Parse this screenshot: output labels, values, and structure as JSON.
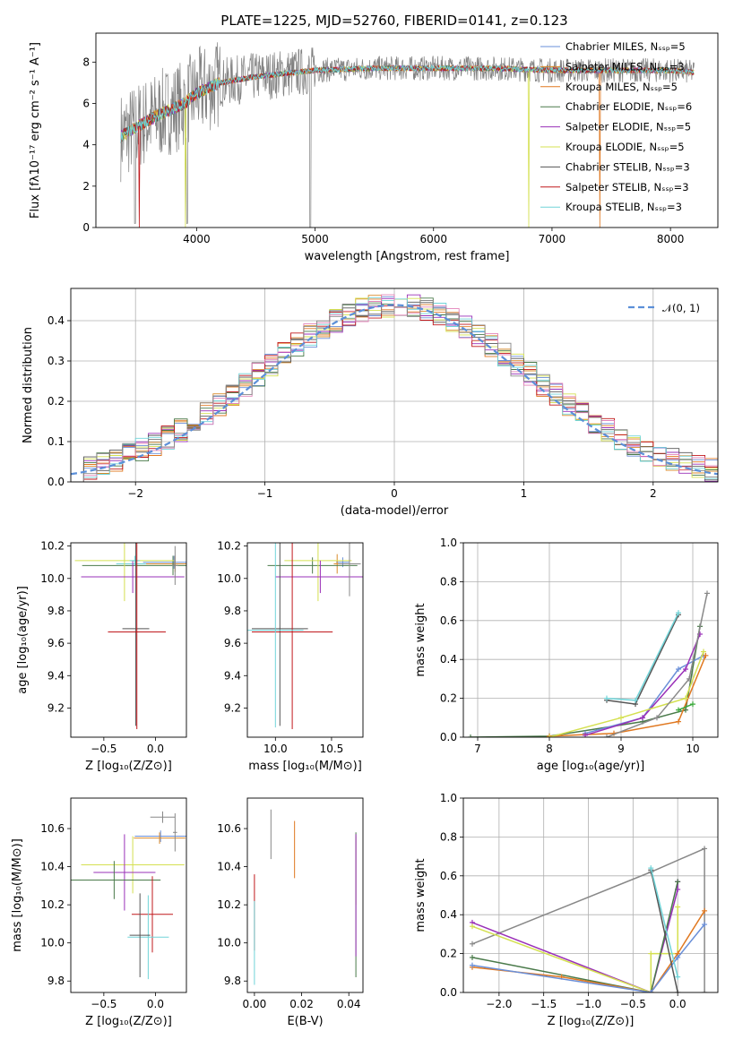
{
  "figure_title": "PLATE=1225, MJD=52760, FIBERID=0141, z=0.123",
  "series_colors": [
    "#6a8fd8",
    "#d98a2a",
    "#e07820",
    "#4a7a4a",
    "#9a30b8",
    "#d4e050",
    "#555555",
    "#c0181c",
    "#70d4d8"
  ],
  "extra_colors": {
    "pink": "#e383b9",
    "green": "#3aa83a"
  },
  "chart_data": [
    {
      "id": "spectrum",
      "type": "line",
      "title": "PLATE=1225, MJD=52760, FIBERID=0141, z=0.123",
      "xlabel": "wavelength [Angstrom, rest frame]",
      "ylabel": "Flux [fλ10⁻¹⁷ erg cm⁻² s⁻¹ A⁻¹]",
      "xlim": [
        3150,
        8400
      ],
      "ylim": [
        0,
        9.4
      ],
      "xticks": [
        "4000",
        "5000",
        "6000",
        "7000",
        "8000"
      ],
      "yticks": [
        "0",
        "2",
        "4",
        "6",
        "8"
      ],
      "legend": "upper right",
      "series": [
        {
          "name": "Chabrier MILES, Nₛₛₚ=5"
        },
        {
          "name": "Salpeter MILES, Nₛₛₚ=3"
        },
        {
          "name": "Kroupa MILES, Nₛₛₚ=5"
        },
        {
          "name": "Chabrier ELODIE, Nₛₛₚ=6"
        },
        {
          "name": "Salpeter ELODIE, Nₛₛₚ=5"
        },
        {
          "name": "Kroupa ELODIE, Nₛₛₚ=5"
        },
        {
          "name": "Chabrier STELIB, Nₛₛₚ=3"
        },
        {
          "name": "Salpeter STELIB, Nₛₛₚ=3"
        },
        {
          "name": "Kroupa STELIB, Nₛₛₚ=3"
        }
      ],
      "continuum": [
        [
          3360,
          4.4
        ],
        [
          3500,
          4.9
        ],
        [
          3700,
          5.5
        ],
        [
          3900,
          6.0
        ],
        [
          4000,
          6.5
        ],
        [
          4200,
          7.0
        ],
        [
          4500,
          7.3
        ],
        [
          5000,
          7.6
        ],
        [
          5500,
          7.7
        ],
        [
          6000,
          7.7
        ],
        [
          6500,
          7.7
        ],
        [
          7000,
          7.6
        ],
        [
          7500,
          7.6
        ],
        [
          8000,
          7.6
        ],
        [
          8200,
          7.5
        ]
      ]
    },
    {
      "id": "residuals",
      "type": "step",
      "xlabel": "(data-model)/error",
      "ylabel": "Normed distribution",
      "xlim": [
        -2.5,
        2.5
      ],
      "ylim": [
        0,
        0.48
      ],
      "xticks": [
        "−2",
        "−1",
        "0",
        "1",
        "2"
      ],
      "yticks": [
        "0.0",
        "0.1",
        "0.2",
        "0.3",
        "0.4"
      ],
      "legend_label": "𝒩(0, 1)",
      "grid": true
    },
    {
      "id": "age-vs-z",
      "type": "scatter",
      "xlabel": "Z [log₁₀(Z/Z⊙)]",
      "ylabel": "age  [log₁₀(age/yr)]",
      "xlim": [
        -0.82,
        0.3
      ],
      "ylim": [
        9.02,
        10.22
      ],
      "xticks": [
        "−0.5",
        "0.0"
      ],
      "yticks": [
        "9.2",
        "9.4",
        "9.6",
        "9.8",
        "10.0",
        "10.2"
      ],
      "errorbars": [
        {
          "x": 0.17,
          "y": 10.09,
          "xerr": 0.55,
          "yerr": 0.03,
          "c": 8
        },
        {
          "x": 0.18,
          "y": 10.1,
          "xerr": 0.3,
          "yerr": 0.04,
          "c": 0
        },
        {
          "x": 0.19,
          "y": 10.09,
          "xerr": 0.28,
          "yerr": 0.05,
          "c": 1
        },
        {
          "x": 0.17,
          "y": 10.08,
          "xerr": 0.88,
          "yerr": 0.06,
          "c": 3
        },
        {
          "x": -0.3,
          "y": 10.11,
          "xerr": 0.48,
          "yerr": 0.25,
          "c": 5
        },
        {
          "x": -0.22,
          "y": 10.01,
          "xerr": 0.5,
          "yerr": 0.1,
          "c": 4
        },
        {
          "x": -0.2,
          "y": 10.11,
          "xerr": 0.05,
          "yerr": 0.03,
          "c": 8
        },
        {
          "x": -0.19,
          "y": 9.69,
          "xerr": 0.13,
          "yerr": 0.6,
          "c": 6
        },
        {
          "x": -0.18,
          "y": 9.67,
          "xerr": 0.28,
          "yerr": 0.6,
          "c": 7
        },
        {
          "x": 0.19,
          "y": 10.08,
          "xerr": 0.03,
          "yerr": 0.12,
          "c": 10
        }
      ]
    },
    {
      "id": "age-vs-mass",
      "type": "scatter",
      "xlabel": "mass [log₁₀(M/M⊙)]",
      "ylabel": "",
      "xlim": [
        9.75,
        10.78
      ],
      "ylim": [
        9.02,
        10.22
      ],
      "xticks": [
        "10.0",
        "10.5"
      ],
      "yticks": [
        "9.2",
        "9.4",
        "9.6",
        "9.8",
        "10.0",
        "10.2"
      ],
      "errorbars": [
        {
          "x": 10.6,
          "y": 10.1,
          "xerr": 0.06,
          "yerr": 0.03,
          "c": 0
        },
        {
          "x": 10.55,
          "y": 10.09,
          "xerr": 0.03,
          "yerr": 0.06,
          "c": 1
        },
        {
          "x": 10.33,
          "y": 10.08,
          "xerr": 0.4,
          "yerr": 0.05,
          "c": 3
        },
        {
          "x": 10.38,
          "y": 10.11,
          "xerr": 0.3,
          "yerr": 0.25,
          "c": 5
        },
        {
          "x": 10.4,
          "y": 10.01,
          "xerr": 0.4,
          "yerr": 0.1,
          "c": 4
        },
        {
          "x": 10.66,
          "y": 10.09,
          "xerr": 0.1,
          "yerr": 0.2,
          "c": 10
        },
        {
          "x": 10.04,
          "y": 9.69,
          "xerr": 0.25,
          "yerr": 0.6,
          "c": 6
        },
        {
          "x": 10.15,
          "y": 9.67,
          "xerr": 0.36,
          "yerr": 0.6,
          "c": 7
        },
        {
          "x": 10.0,
          "y": 9.68,
          "xerr": 0.25,
          "yerr": 0.6,
          "c": 8
        }
      ]
    },
    {
      "id": "mass-weight-vs-age",
      "type": "line",
      "xlabel": "age  [log₁₀(age/yr)]",
      "ylabel": "mass weight",
      "xlim": [
        6.8,
        10.35
      ],
      "ylim": [
        0,
        1.0
      ],
      "xticks": [
        "7",
        "8",
        "9",
        "10"
      ],
      "yticks": [
        "0.0",
        "0.2",
        "0.4",
        "0.6",
        "0.8",
        "1.0"
      ],
      "grid": true,
      "series": [
        {
          "c": 3,
          "x": [
            6.9,
            8.0,
            9.3,
            9.9,
            10.1
          ],
          "y": [
            0.0,
            0.005,
            0.08,
            0.14,
            0.57
          ]
        },
        {
          "c": 0,
          "x": [
            8.5,
            9.3,
            9.8,
            10.15
          ],
          "y": [
            0.02,
            0.1,
            0.35,
            0.42
          ]
        },
        {
          "c": 2,
          "x": [
            8.0,
            8.9,
            9.8,
            10.18
          ],
          "y": [
            0.005,
            0.02,
            0.08,
            0.42
          ]
        },
        {
          "c": 4,
          "x": [
            8.5,
            9.3,
            9.9,
            10.1
          ],
          "y": [
            0.01,
            0.1,
            0.35,
            0.53
          ]
        },
        {
          "c": 5,
          "x": [
            8.0,
            9.0,
            9.9,
            10.15
          ],
          "y": [
            0.0,
            0.1,
            0.2,
            0.44
          ]
        },
        {
          "c": 10,
          "x": [
            8.8,
            9.5,
            9.95,
            10.2
          ],
          "y": [
            0.0,
            0.1,
            0.3,
            0.74
          ]
        },
        {
          "c": 6,
          "x": [
            8.8,
            9.2,
            9.8
          ],
          "y": [
            0.19,
            0.17,
            0.63
          ]
        },
        {
          "c": 8,
          "x": [
            8.8,
            9.2,
            9.8
          ],
          "y": [
            0.2,
            0.19,
            0.64
          ]
        },
        {
          "c": 11,
          "x": [
            9.8,
            10.0
          ],
          "y": [
            0.14,
            0.17
          ]
        }
      ]
    },
    {
      "id": "mass-vs-z",
      "type": "scatter",
      "xlabel": "Z [log₁₀(Z/Z⊙)]",
      "ylabel": "mass [log₁₀(M/M⊙)]",
      "xlim": [
        -0.82,
        0.3
      ],
      "ylim": [
        9.74,
        10.76
      ],
      "xticks": [
        "−0.5",
        "0.0"
      ],
      "yticks": [
        "9.8",
        "10.0",
        "10.2",
        "10.4",
        "10.6"
      ],
      "errorbars": [
        {
          "x": 0.07,
          "y": 10.66,
          "xerr": 0.12,
          "yerr": 0.03,
          "c": 10
        },
        {
          "x": 0.05,
          "y": 10.56,
          "xerr": 0.25,
          "yerr": 0.03,
          "c": 0
        },
        {
          "x": 0.04,
          "y": 10.55,
          "xerr": 0.25,
          "yerr": 0.03,
          "c": 1
        },
        {
          "x": -0.22,
          "y": 10.41,
          "xerr": 0.5,
          "yerr": 0.15,
          "c": 5
        },
        {
          "x": -0.3,
          "y": 10.37,
          "xerr": 0.3,
          "yerr": 0.2,
          "c": 4
        },
        {
          "x": -0.4,
          "y": 10.33,
          "xerr": 0.45,
          "yerr": 0.1,
          "c": 3
        },
        {
          "x": -0.03,
          "y": 10.15,
          "xerr": 0.2,
          "yerr": 0.2,
          "c": 7
        },
        {
          "x": -0.07,
          "y": 10.03,
          "xerr": 0.2,
          "yerr": 0.22,
          "c": 8
        },
        {
          "x": -0.15,
          "y": 10.04,
          "xerr": 0.1,
          "yerr": 0.22,
          "c": 6
        },
        {
          "x": 0.19,
          "y": 10.58,
          "xerr": 0.02,
          "yerr": 0.1,
          "c": 10
        }
      ]
    },
    {
      "id": "mass-vs-ebv",
      "type": "scatter",
      "xlabel": "E(B-V)",
      "ylabel": "",
      "xlim": [
        -0.003,
        0.046
      ],
      "ylim": [
        9.74,
        10.76
      ],
      "xticks": [
        "0.00",
        "0.02",
        "0.04"
      ],
      "yticks": [
        "9.8",
        "10.0",
        "10.2",
        "10.4",
        "10.6"
      ],
      "errorbars": [
        {
          "x": 0.007,
          "y": 10.57,
          "xerr": 0,
          "yerr": 0.13,
          "c": 10
        },
        {
          "x": 0.017,
          "y": 10.49,
          "xerr": 0,
          "yerr": 0.15,
          "c": 2
        },
        {
          "x": 0.043,
          "y": 10.38,
          "xerr": 0,
          "yerr": 0.18,
          "c": 5
        },
        {
          "x": 0.043,
          "y": 10.2,
          "xerr": 0,
          "yerr": 0.38,
          "c": 3
        },
        {
          "x": 0.0,
          "y": 10.16,
          "xerr": 0,
          "yerr": 0.2,
          "c": 7
        },
        {
          "x": 0.0,
          "y": 10.0,
          "xerr": 0,
          "yerr": 0.22,
          "c": 8
        },
        {
          "x": 0.043,
          "y": 10.25,
          "xerr": 0,
          "yerr": 0.32,
          "c": 4
        }
      ]
    },
    {
      "id": "mass-weight-vs-z",
      "type": "line",
      "xlabel": "Z [log₁₀(Z/Z⊙)]",
      "ylabel": "mass weight",
      "xlim": [
        -2.4,
        0.45
      ],
      "ylim": [
        0,
        1.0
      ],
      "xticks": [
        "−2.0",
        "−1.5",
        "−1.0",
        "−0.5",
        "0.0"
      ],
      "yticks": [
        "0.0",
        "0.2",
        "0.4",
        "0.6",
        "0.8",
        "1.0"
      ],
      "grid": true,
      "series": [
        {
          "c": 10,
          "x": [
            -2.3,
            -0.3,
            0.3,
            0.3
          ],
          "y": [
            0.25,
            0.62,
            0.74,
            0.0
          ]
        },
        {
          "c": 4,
          "x": [
            -2.3,
            -0.3,
            0.0,
            0.0
          ],
          "y": [
            0.36,
            0.0,
            0.53,
            0.57
          ]
        },
        {
          "c": 5,
          "x": [
            -2.3,
            -0.3,
            -0.3,
            0.0,
            0.0
          ],
          "y": [
            0.34,
            0.0,
            0.2,
            0.2,
            0.44
          ]
        },
        {
          "c": 3,
          "x": [
            -2.3,
            -0.3,
            0.0
          ],
          "y": [
            0.18,
            0.0,
            0.57
          ]
        },
        {
          "c": 2,
          "x": [
            -2.3,
            -1.3,
            -0.3,
            0.0,
            0.3
          ],
          "y": [
            0.13,
            0.08,
            0.0,
            0.2,
            0.42
          ]
        },
        {
          "c": 0,
          "x": [
            -2.3,
            -0.3,
            0.0,
            0.3
          ],
          "y": [
            0.14,
            0.0,
            0.18,
            0.35
          ]
        },
        {
          "c": 6,
          "x": [
            -0.3,
            0.0
          ],
          "y": [
            0.63,
            0.0
          ]
        },
        {
          "c": 8,
          "x": [
            -0.3,
            0.0
          ],
          "y": [
            0.64,
            0.08
          ]
        }
      ]
    }
  ]
}
